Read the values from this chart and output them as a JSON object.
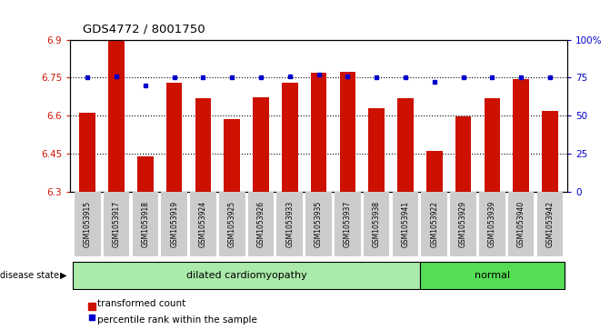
{
  "title": "GDS4772 / 8001750",
  "samples": [
    "GSM1053915",
    "GSM1053917",
    "GSM1053918",
    "GSM1053919",
    "GSM1053924",
    "GSM1053925",
    "GSM1053926",
    "GSM1053933",
    "GSM1053935",
    "GSM1053937",
    "GSM1053938",
    "GSM1053941",
    "GSM1053922",
    "GSM1053929",
    "GSM1053939",
    "GSM1053940",
    "GSM1053942"
  ],
  "bar_values": [
    6.612,
    6.898,
    6.44,
    6.73,
    6.67,
    6.585,
    6.672,
    6.73,
    6.77,
    6.772,
    6.628,
    6.668,
    6.46,
    6.598,
    6.67,
    6.745,
    6.618
  ],
  "percentile_values": [
    75,
    76,
    70,
    75,
    75,
    75,
    75,
    76,
    77,
    76,
    75,
    75,
    72,
    75,
    75,
    75,
    75
  ],
  "group_labels": [
    "dilated cardiomyopathy",
    "normal"
  ],
  "group_counts": [
    12,
    5
  ],
  "group_colors": [
    "#aaeaaa",
    "#55dd55"
  ],
  "ylim_left": [
    6.3,
    6.9
  ],
  "ylim_right": [
    0,
    100
  ],
  "yticks_left": [
    6.3,
    6.45,
    6.6,
    6.75,
    6.9
  ],
  "ytick_labels_left": [
    "6.3",
    "6.45",
    "6.6",
    "6.75",
    "6.9"
  ],
  "yticks_right": [
    0,
    25,
    50,
    75,
    100
  ],
  "ytick_labels_right": [
    "0",
    "25",
    "50",
    "75",
    "100%"
  ],
  "hlines": [
    6.45,
    6.6,
    6.75,
    6.9
  ],
  "bar_color": "#cc1100",
  "dot_color": "#0000cc",
  "background_color": "#ffffff",
  "tick_bg_color": "#cccccc",
  "bar_width": 0.55,
  "disease_state_label": "disease state"
}
